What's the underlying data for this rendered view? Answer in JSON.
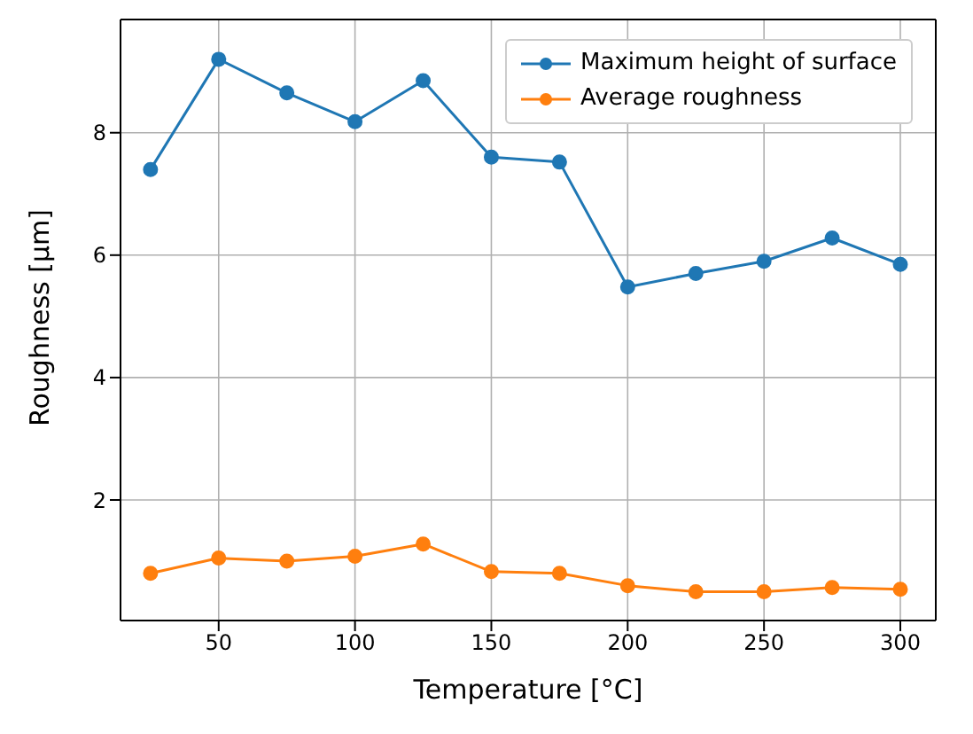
{
  "chart_data": {
    "type": "line",
    "xlabel": "Temperature [°C]",
    "ylabel": "Roughness [µm]",
    "x": [
      25,
      50,
      75,
      100,
      125,
      150,
      175,
      200,
      225,
      250,
      275,
      300
    ],
    "series": [
      {
        "name": "Maximum height of surface",
        "color": "#1f77b4",
        "values": [
          7.4,
          9.2,
          8.65,
          8.18,
          8.85,
          7.6,
          7.52,
          5.48,
          5.7,
          5.9,
          6.28,
          5.85
        ]
      },
      {
        "name": "Average roughness",
        "color": "#ff7f0e",
        "values": [
          0.8,
          1.05,
          1.0,
          1.08,
          1.28,
          0.83,
          0.8,
          0.6,
          0.5,
          0.5,
          0.57,
          0.54
        ]
      }
    ],
    "xlim": [
      14,
      313
    ],
    "xticks": [
      50,
      100,
      150,
      200,
      250,
      300
    ],
    "ylim": [
      0.03,
      9.85
    ],
    "yticks": [
      2,
      4,
      6,
      8
    ],
    "grid": true,
    "legend": "top right",
    "marker": "circle",
    "line_style": "solid"
  }
}
